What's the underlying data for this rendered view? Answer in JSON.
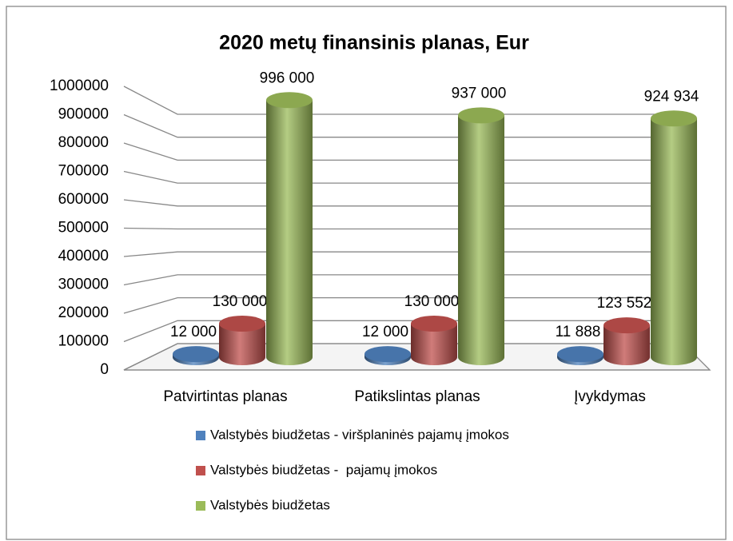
{
  "chart_data": {
    "type": "bar3d",
    "title": "2020 metų finansinis planas, Eur",
    "categories": [
      "Patvirtintas planas",
      "Patikslintas planas",
      "Įvykdymas"
    ],
    "series": [
      {
        "name": "Valstybės biudžetas - viršplaninės pajamų įmokos",
        "color": "#4f81bd",
        "values": [
          12000,
          12000,
          11888
        ],
        "value_labels": [
          "12 000",
          "12 000",
          "11 888"
        ]
      },
      {
        "name": "Valstybės biudžetas -  pajamų įmokos",
        "color": "#c0504d",
        "values": [
          130000,
          130000,
          123552
        ],
        "value_labels": [
          "130 000",
          "130 000",
          "123 552"
        ]
      },
      {
        "name": "Valstybės biudžetas",
        "color": "#9bbb59",
        "values": [
          996000,
          937000,
          924934
        ],
        "value_labels": [
          "996 000",
          "937 000",
          "924 934"
        ]
      }
    ],
    "ylim": [
      0,
      1000000
    ],
    "yticks": [
      0,
      100000,
      200000,
      300000,
      400000,
      500000,
      600000,
      700000,
      800000,
      900000,
      1000000
    ],
    "grid": true,
    "legend": "bottom"
  }
}
